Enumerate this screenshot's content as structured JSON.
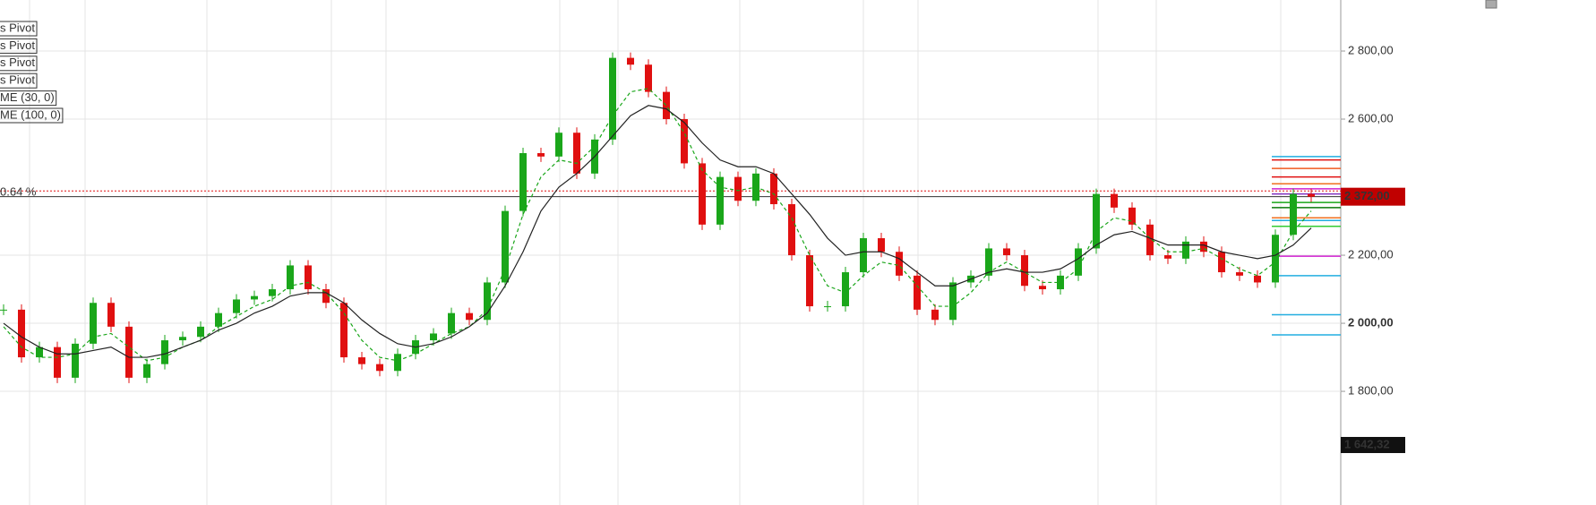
{
  "chart_data": {
    "type": "candlestick",
    "ylim": [
      1466,
      2950
    ],
    "yticks": [
      {
        "value": 2800,
        "label": "2 800,00"
      },
      {
        "value": 2600,
        "label": "2 600,00"
      },
      {
        "value": 2200,
        "label": "2 200,00"
      },
      {
        "value": 2000,
        "label": "2 000,00"
      },
      {
        "value": 1800,
        "label": "1 800,00"
      }
    ],
    "grid": true,
    "up_color": "#1aa61a",
    "down_color": "#e01010",
    "values": [
      2040,
      1900,
      1930,
      1840,
      1940,
      2060,
      1990,
      1840,
      1880,
      1950,
      1960,
      1990,
      2030,
      2070,
      2080,
      2100,
      2170,
      2100,
      2060,
      1900,
      1880,
      1860,
      1910,
      1950,
      1970,
      2030,
      2010,
      2120,
      2330,
      2500,
      2490,
      2560,
      2440,
      2540,
      2780,
      2760,
      2680,
      2600,
      2470,
      2290,
      2430,
      2360,
      2440,
      2350,
      2200,
      2050,
      2050,
      2150,
      2250,
      2210,
      2140,
      2040,
      2010,
      2120,
      2140,
      2220,
      2200,
      2110,
      2100,
      2140,
      2220,
      2380,
      2340,
      2290,
      2200,
      2190,
      2240,
      2210,
      2150,
      2140,
      2120,
      2260,
      2380,
      2372
    ],
    "series": [
      {
        "name": "ME (30, 0)",
        "color": "#1aa61a",
        "dashed": true,
        "values": [
          1990,
          1930,
          1900,
          1900,
          1910,
          1960,
          1970,
          1930,
          1890,
          1900,
          1930,
          1950,
          1990,
          2020,
          2050,
          2070,
          2110,
          2120,
          2090,
          2030,
          1950,
          1900,
          1890,
          1910,
          1940,
          1970,
          1990,
          2040,
          2160,
          2320,
          2430,
          2480,
          2470,
          2520,
          2610,
          2680,
          2690,
          2640,
          2560,
          2450,
          2400,
          2390,
          2400,
          2380,
          2310,
          2200,
          2110,
          2090,
          2140,
          2180,
          2170,
          2110,
          2050,
          2050,
          2090,
          2150,
          2180,
          2150,
          2120,
          2120,
          2160,
          2270,
          2310,
          2300,
          2250,
          2210,
          2210,
          2220,
          2190,
          2160,
          2140,
          2180,
          2270,
          2330
        ]
      },
      {
        "name": "ME (100, 0)",
        "color": "#222222",
        "dashed": false,
        "values": [
          2000,
          1960,
          1930,
          1910,
          1910,
          1920,
          1930,
          1900,
          1900,
          1910,
          1930,
          1950,
          1980,
          2000,
          2030,
          2050,
          2080,
          2090,
          2090,
          2060,
          2010,
          1970,
          1940,
          1930,
          1940,
          1960,
          1990,
          2030,
          2110,
          2210,
          2330,
          2400,
          2440,
          2490,
          2550,
          2610,
          2640,
          2630,
          2590,
          2530,
          2480,
          2460,
          2460,
          2440,
          2380,
          2320,
          2250,
          2200,
          2210,
          2210,
          2190,
          2150,
          2110,
          2110,
          2130,
          2150,
          2160,
          2150,
          2150,
          2160,
          2190,
          2230,
          2260,
          2270,
          2250,
          2230,
          2230,
          2230,
          2210,
          2200,
          2190,
          2200,
          2230,
          2280
        ]
      }
    ],
    "pivot_legend": [
      {
        "name": "s Pivot",
        "color": "#b5502a"
      },
      {
        "name": "s Pivot",
        "color": "#1aa61a"
      },
      {
        "name": "s Pivot",
        "color": "#e04010"
      },
      {
        "name": "s Pivot",
        "color": "#22aee0"
      }
    ],
    "pivots": [
      {
        "value": 2490,
        "color": "#22aee0"
      },
      {
        "value": 2480,
        "color": "#e01010"
      },
      {
        "value": 2455,
        "color": "#f05a20"
      },
      {
        "value": 2430,
        "color": "#e01010"
      },
      {
        "value": 2410,
        "color": "#f07020"
      },
      {
        "value": 2395,
        "color": "#d020d0"
      },
      {
        "value": 2380,
        "color": "#8030c0"
      },
      {
        "value": 2355,
        "color": "#1aa61a"
      },
      {
        "value": 2340,
        "color": "#0a7a0a"
      },
      {
        "value": 2310,
        "color": "#f07020"
      },
      {
        "value": 2302,
        "color": "#22aee0"
      },
      {
        "value": 2285,
        "color": "#33cc33"
      },
      {
        "value": 2197,
        "color": "#d020d0"
      },
      {
        "value": 2140,
        "color": "#22aee0"
      },
      {
        "value": 2025,
        "color": "#22aee0"
      },
      {
        "value": 1966,
        "color": "#22aee0"
      }
    ],
    "reference_line": 2389,
    "change_label": "0.64 %",
    "last_price": 2372,
    "last_price_label": "2 372,00",
    "low_price": 1642.32,
    "low_price_label": "1 642,32"
  }
}
